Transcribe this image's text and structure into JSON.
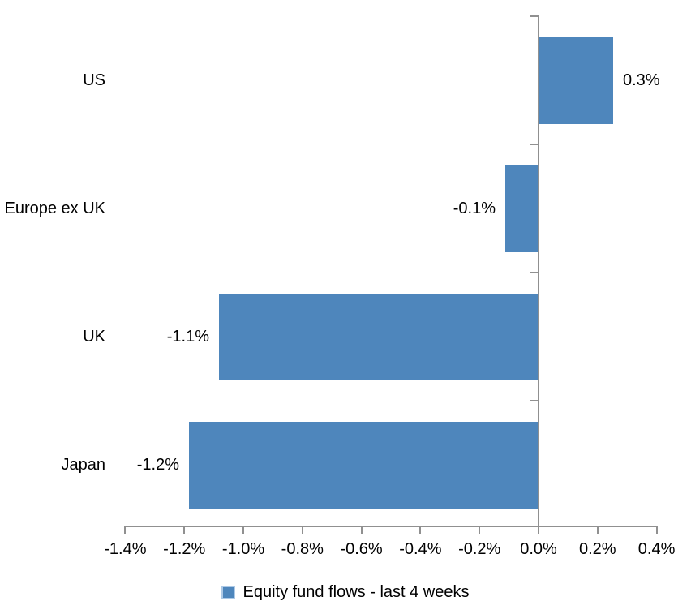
{
  "chart_data": {
    "type": "bar",
    "orientation": "horizontal",
    "title": "",
    "categories": [
      "US",
      "Europe ex UK",
      "UK",
      "Japan"
    ],
    "series": [
      {
        "name": "Equity fund flows - last 4 weeks",
        "values": [
          0.25,
          -0.11,
          -1.08,
          -1.18
        ],
        "data_labels": [
          "0.3%",
          "-0.1%",
          "-1.1%",
          "-1.2%"
        ]
      }
    ],
    "xlabel": "",
    "ylabel": "",
    "xlim": [
      -1.4,
      0.4
    ],
    "x_ticks": [
      {
        "v": -1.4,
        "label": "-1.4%"
      },
      {
        "v": -1.2,
        "label": "-1.2%"
      },
      {
        "v": -1.0,
        "label": "-1.0%"
      },
      {
        "v": -0.8,
        "label": "-0.8%"
      },
      {
        "v": -0.6,
        "label": "-0.6%"
      },
      {
        "v": -0.4,
        "label": "-0.4%"
      },
      {
        "v": -0.2,
        "label": "-0.2%"
      },
      {
        "v": 0.0,
        "label": "0.0%"
      },
      {
        "v": 0.2,
        "label": "0.2%"
      },
      {
        "v": 0.4,
        "label": "0.4%"
      }
    ],
    "grid": "off",
    "legend_position": "bottom",
    "colors": {
      "bar": "#4E86BC",
      "axis": "#909090",
      "text": "#000000",
      "legend_swatch_border": "#ADC9E6",
      "background": "#FFFFFF"
    }
  }
}
